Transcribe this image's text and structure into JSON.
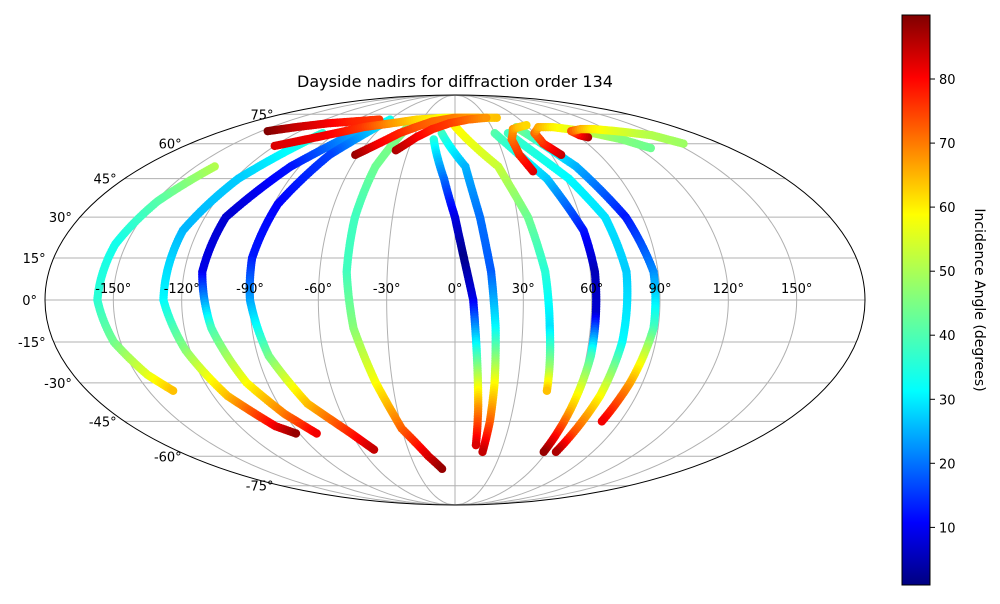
{
  "chart_data": {
    "type": "scatter",
    "projection": "mollweide",
    "title": "Dayside nadirs for diffraction order 134",
    "colorbar": {
      "label": "Incidence Angle (degrees)",
      "colormap": "jet",
      "range": [
        1,
        90
      ],
      "ticks": [
        "10",
        "20",
        "30",
        "40",
        "50",
        "60",
        "70",
        "80"
      ],
      "tick_values": [
        10,
        20,
        30,
        40,
        50,
        60,
        70,
        80
      ]
    },
    "lon_ticks": [
      "-150°",
      "-120°",
      "-90°",
      "-60°",
      "-30°",
      "0°",
      "30°",
      "60°",
      "90°",
      "120°",
      "150°"
    ],
    "lon_tick_values": [
      -150,
      -120,
      -90,
      -60,
      -30,
      0,
      30,
      60,
      90,
      120,
      150
    ],
    "lat_ticks": [
      "75°",
      "60°",
      "45°",
      "30°",
      "15°",
      "0°",
      "-15°",
      "-30°",
      "-45°",
      "-60°",
      "-75°"
    ],
    "lat_tick_values": [
      75,
      60,
      45,
      30,
      15,
      0,
      -15,
      -30,
      -45,
      -60,
      -75
    ],
    "grid": true,
    "series": [
      {
        "points": [
          [
            -139,
            50,
            50
          ],
          [
            -149,
            36,
            42
          ],
          [
            -155,
            20,
            36
          ],
          [
            -157,
            0,
            38
          ],
          [
            -153,
            -15,
            44
          ],
          [
            -145,
            -27,
            54
          ],
          [
            -138,
            -33,
            62
          ]
        ]
      },
      {
        "points": [
          [
            -100,
            65,
            38
          ],
          [
            -118,
            45,
            30
          ],
          [
            -127,
            25,
            28
          ],
          [
            -128,
            0,
            34
          ],
          [
            -122,
            -18,
            46
          ],
          [
            -113,
            -35,
            62
          ],
          [
            -100,
            -47,
            80
          ],
          [
            -92,
            -50,
            88
          ]
        ]
      },
      {
        "points": [
          [
            -70,
            70,
            32
          ],
          [
            -95,
            50,
            14
          ],
          [
            -110,
            30,
            8
          ],
          [
            -112,
            10,
            10
          ],
          [
            -108,
            -10,
            40
          ],
          [
            -100,
            -30,
            56
          ],
          [
            -90,
            -42,
            68
          ],
          [
            -80,
            -50,
            80
          ]
        ]
      },
      {
        "points": [
          [
            -60,
            72,
            36
          ],
          [
            -78,
            55,
            18
          ],
          [
            -88,
            35,
            12
          ],
          [
            -91,
            15,
            14
          ],
          [
            -90,
            0,
            26
          ],
          [
            -85,
            -20,
            44
          ],
          [
            -75,
            -38,
            62
          ],
          [
            -60,
            -50,
            76
          ],
          [
            -52,
            -57,
            84
          ]
        ]
      },
      {
        "points": [
          [
            -38,
            70,
            46
          ],
          [
            -46,
            50,
            44
          ],
          [
            -48,
            30,
            40
          ],
          [
            -48,
            10,
            40
          ],
          [
            -45,
            -10,
            46
          ],
          [
            -38,
            -30,
            56
          ],
          [
            -30,
            -48,
            70
          ],
          [
            -18,
            -60,
            82
          ],
          [
            -10,
            -66,
            88
          ]
        ]
      },
      {
        "points": [
          [
            -15,
            62,
            38
          ],
          [
            -6,
            45,
            22
          ],
          [
            0,
            30,
            10
          ],
          [
            4,
            15,
            2
          ],
          [
            8,
            0,
            10
          ],
          [
            10,
            -20,
            40
          ],
          [
            12,
            -40,
            66
          ],
          [
            13,
            -55,
            82
          ]
        ]
      },
      {
        "points": [
          [
            -10,
            65,
            40
          ],
          [
            6,
            50,
            28
          ],
          [
            12,
            30,
            22
          ],
          [
            16,
            10,
            20
          ],
          [
            18,
            -10,
            34
          ],
          [
            19,
            -30,
            56
          ],
          [
            19,
            -45,
            70
          ],
          [
            18,
            -58,
            84
          ]
        ]
      },
      {
        "points": [
          [
            -2,
            70,
            58
          ],
          [
            25,
            50,
            52
          ],
          [
            35,
            30,
            44
          ],
          [
            40,
            10,
            38
          ],
          [
            42,
            -10,
            32
          ],
          [
            44,
            -25,
            48
          ],
          [
            45,
            -33,
            62
          ]
        ]
      },
      {
        "points": [
          [
            30,
            65,
            42
          ],
          [
            50,
            45,
            30
          ],
          [
            60,
            25,
            14
          ],
          [
            62,
            10,
            6
          ],
          [
            62,
            -5,
            8
          ],
          [
            62,
            -20,
            40
          ],
          [
            60,
            -40,
            62
          ],
          [
            58,
            -58,
            88
          ]
        ]
      },
      {
        "points": [
          [
            40,
            65,
            40
          ],
          [
            62,
            45,
            34
          ],
          [
            72,
            30,
            32
          ],
          [
            76,
            10,
            30
          ],
          [
            75,
            -15,
            34
          ],
          [
            72,
            -35,
            56
          ],
          [
            68,
            -50,
            72
          ],
          [
            66,
            -58,
            86
          ]
        ]
      },
      {
        "points": [
          [
            50,
            68,
            46
          ],
          [
            70,
            50,
            28
          ],
          [
            82,
            30,
            14
          ],
          [
            88,
            10,
            24
          ],
          [
            88,
            -10,
            40
          ],
          [
            84,
            -30,
            64
          ],
          [
            80,
            -45,
            80
          ]
        ]
      },
      {
        "points": [
          [
            -145,
            66,
            90
          ],
          [
            -130,
            68,
            84
          ],
          [
            -110,
            70,
            80
          ],
          [
            -90,
            71,
            76
          ],
          [
            -70,
            72,
            74
          ]
        ]
      },
      {
        "points": [
          [
            -120,
            59,
            82
          ],
          [
            -95,
            64,
            80
          ],
          [
            -75,
            68,
            74
          ],
          [
            -55,
            70,
            66
          ],
          [
            -35,
            72,
            60
          ],
          [
            -10,
            73,
            56
          ],
          [
            10,
            73,
            58
          ],
          [
            40,
            73,
            62
          ]
        ]
      },
      {
        "points": [
          [
            -62,
            55,
            88
          ],
          [
            -52,
            60,
            80
          ],
          [
            -42,
            65,
            76
          ],
          [
            -32,
            68,
            72
          ],
          [
            -20,
            71,
            70
          ],
          [
            0,
            73,
            68
          ],
          [
            22,
            73,
            64
          ]
        ]
      },
      {
        "points": [
          [
            -38,
            57,
            86
          ],
          [
            -28,
            63,
            80
          ],
          [
            -18,
            67,
            76
          ],
          [
            -5,
            70,
            74
          ],
          [
            12,
            72,
            70
          ],
          [
            30,
            73,
            66
          ]
        ]
      },
      {
        "points": [
          [
            44,
            48,
            82
          ],
          [
            40,
            55,
            76
          ],
          [
            40,
            62,
            70
          ],
          [
            46,
            67,
            66
          ],
          [
            52,
            68,
            62
          ],
          [
            60,
            69,
            60
          ]
        ]
      },
      {
        "points": [
          [
            66,
            55,
            84
          ],
          [
            60,
            60,
            76
          ],
          [
            60,
            65,
            70
          ],
          [
            68,
            68,
            64
          ],
          [
            80,
            68,
            58
          ],
          [
            100,
            66,
            52
          ],
          [
            118,
            62,
            46
          ],
          [
            128,
            58,
            44
          ]
        ]
      },
      {
        "points": [
          [
            96,
            63,
            86
          ],
          [
            92,
            64,
            80
          ],
          [
            90,
            66,
            72
          ],
          [
            100,
            67,
            64
          ],
          [
            110,
            67,
            58
          ],
          [
            125,
            66,
            54
          ],
          [
            145,
            64,
            50
          ],
          [
            155,
            60,
            48
          ]
        ]
      }
    ]
  }
}
